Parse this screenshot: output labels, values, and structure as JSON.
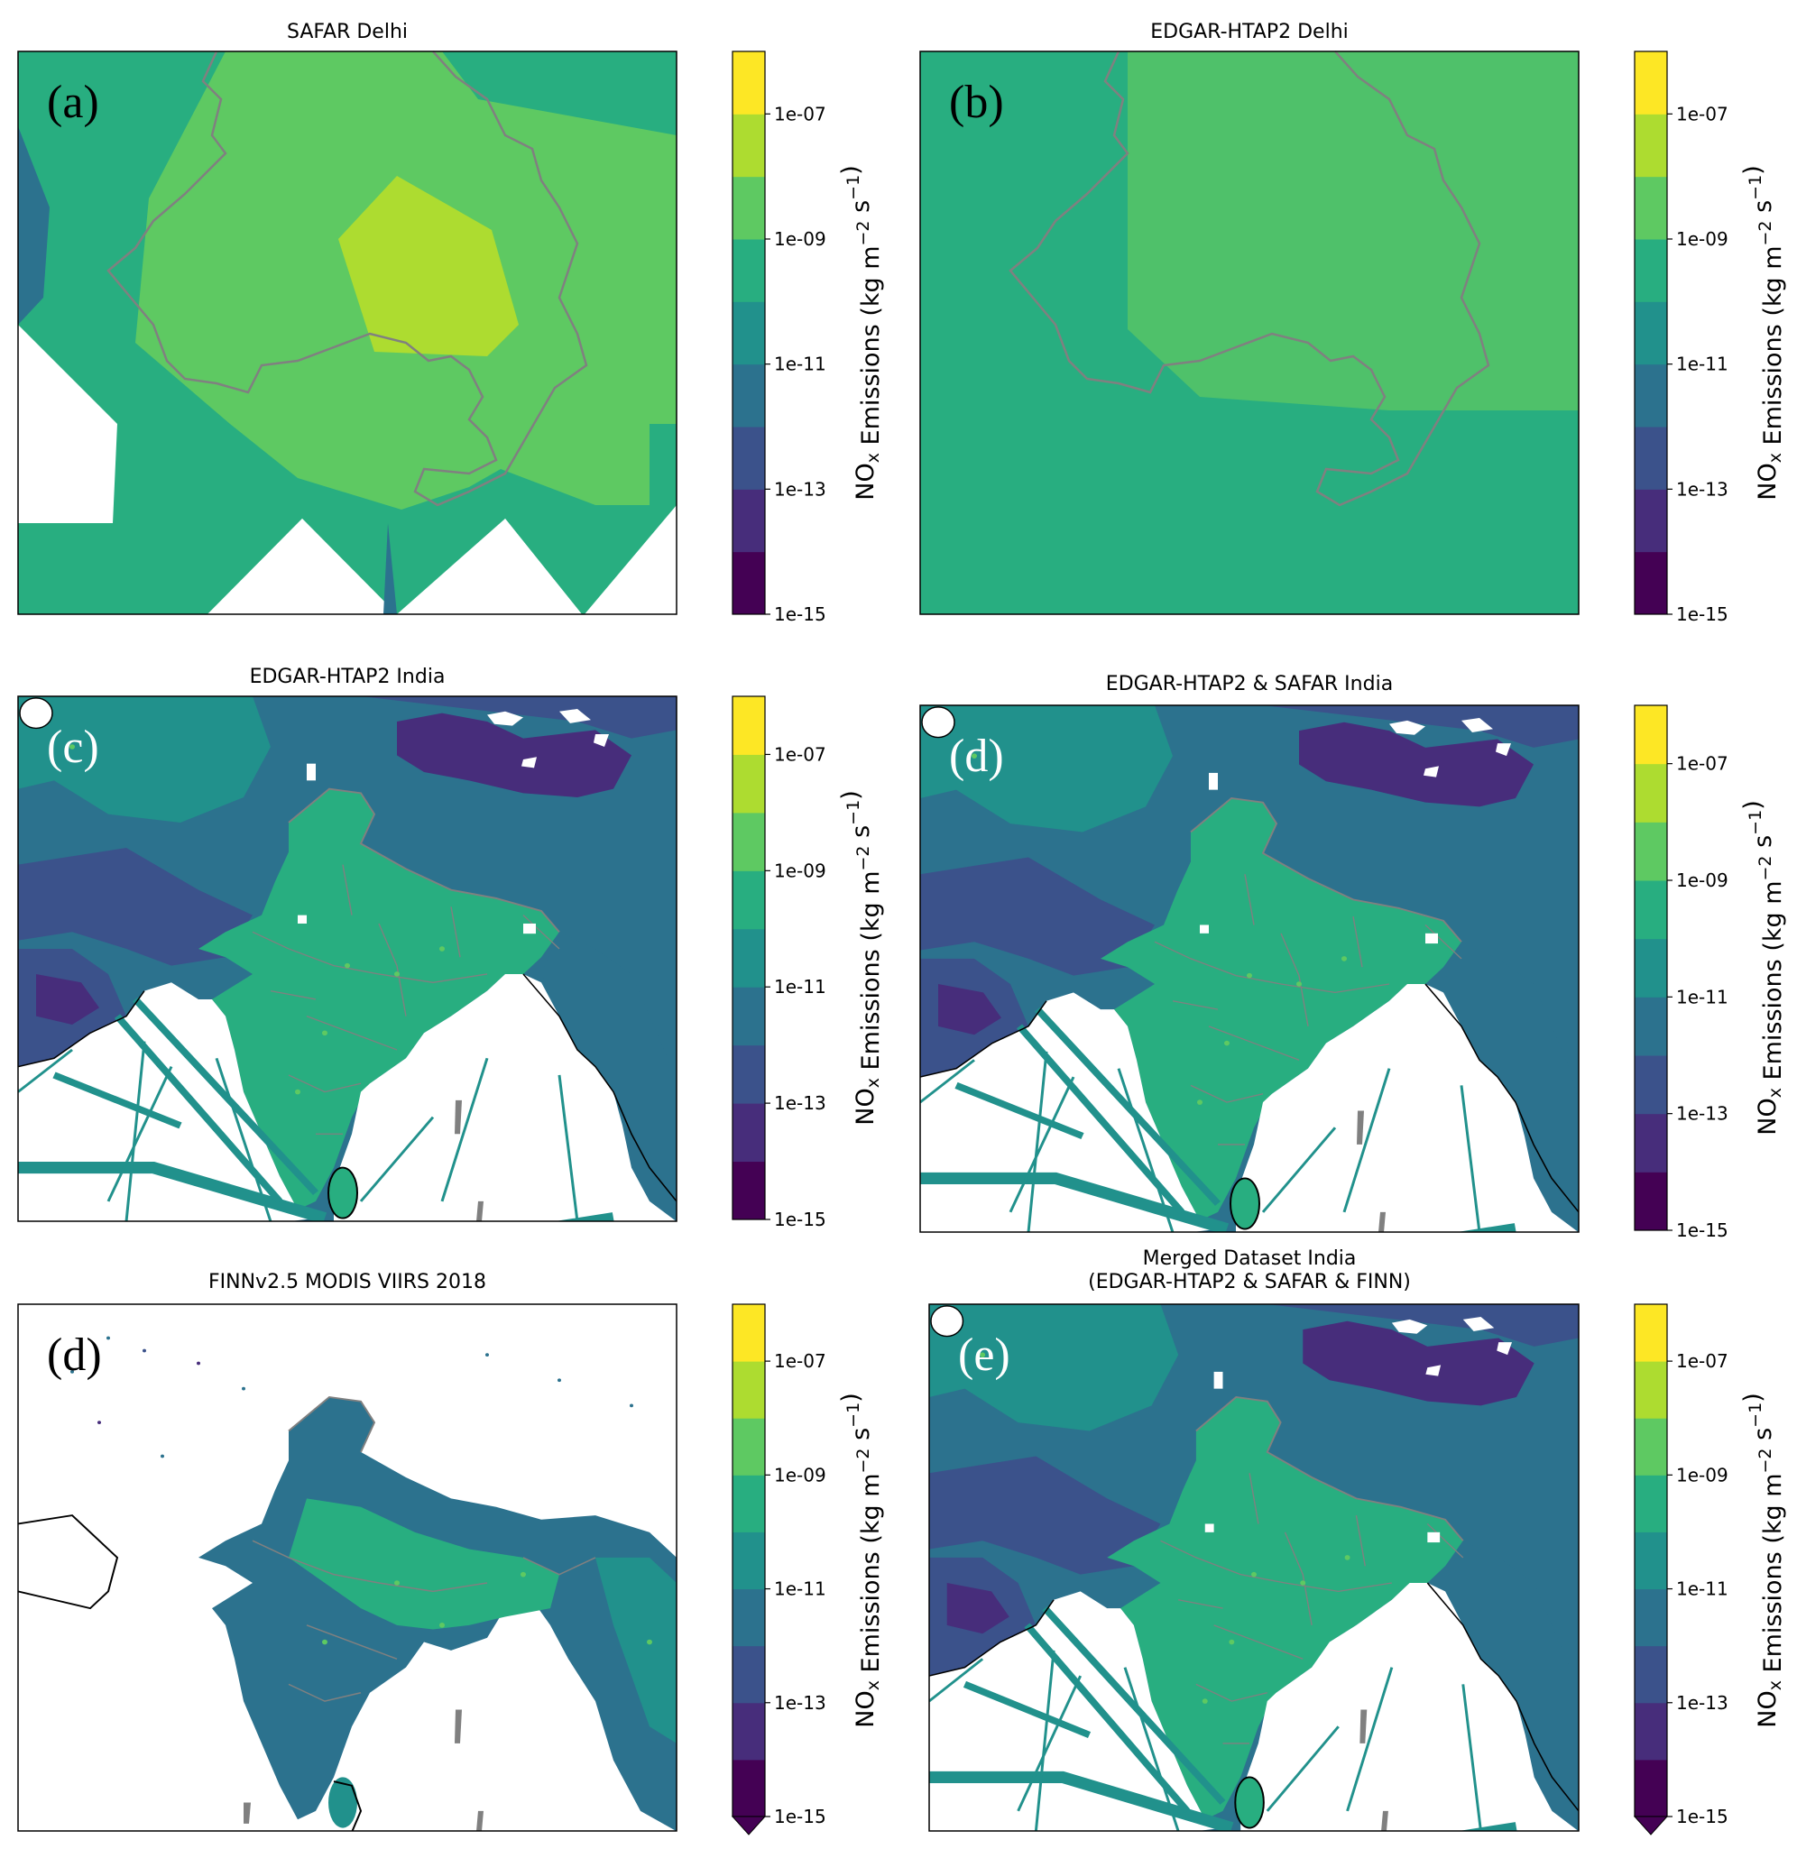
{
  "panels": [
    {
      "id": "a",
      "title": "SAFAR Delhi",
      "title2": "",
      "letter": "(a)",
      "map": "delhi-safar",
      "cbar_extend": false
    },
    {
      "id": "b",
      "title": "EDGAR-HTAP2 Delhi",
      "title2": "",
      "letter": "(b)",
      "map": "delhi-edgar",
      "cbar_extend": false
    },
    {
      "id": "c",
      "title": "EDGAR-HTAP2 India",
      "title2": "",
      "letter": "(c)",
      "map": "india-edgar",
      "cbar_extend": false
    },
    {
      "id": "d1",
      "title": "EDGAR-HTAP2 & SAFAR India",
      "title2": "",
      "letter": "(d)",
      "map": "india-edgar",
      "cbar_extend": false
    },
    {
      "id": "d2",
      "title": "FINNv2.5 MODIS VIIRS 2018",
      "title2": "",
      "letter": "(d)",
      "map": "india-finn",
      "cbar_extend": true
    },
    {
      "id": "e",
      "title": "Merged Dataset India",
      "title2": "(EDGAR-HTAP2 & SAFAR & FINN)",
      "letter": "(e)",
      "map": "india-merged",
      "cbar_extend": true
    }
  ],
  "colorbar": {
    "label_main": "NO",
    "label_sub": "x",
    "label_rest": " Emissions (kg m",
    "label_sup1": "−2",
    "label_mid": " s",
    "label_sup2": "−1",
    "label_end": ")",
    "ticks": [
      "1e-07",
      "1e-09",
      "1e-11",
      "1e-13",
      "1e-15"
    ],
    "colors": [
      "#440154",
      "#472d7b",
      "#3b528b",
      "#2c728e",
      "#21918c",
      "#28ae80",
      "#5ec962",
      "#addc30",
      "#fde725"
    ]
  }
}
